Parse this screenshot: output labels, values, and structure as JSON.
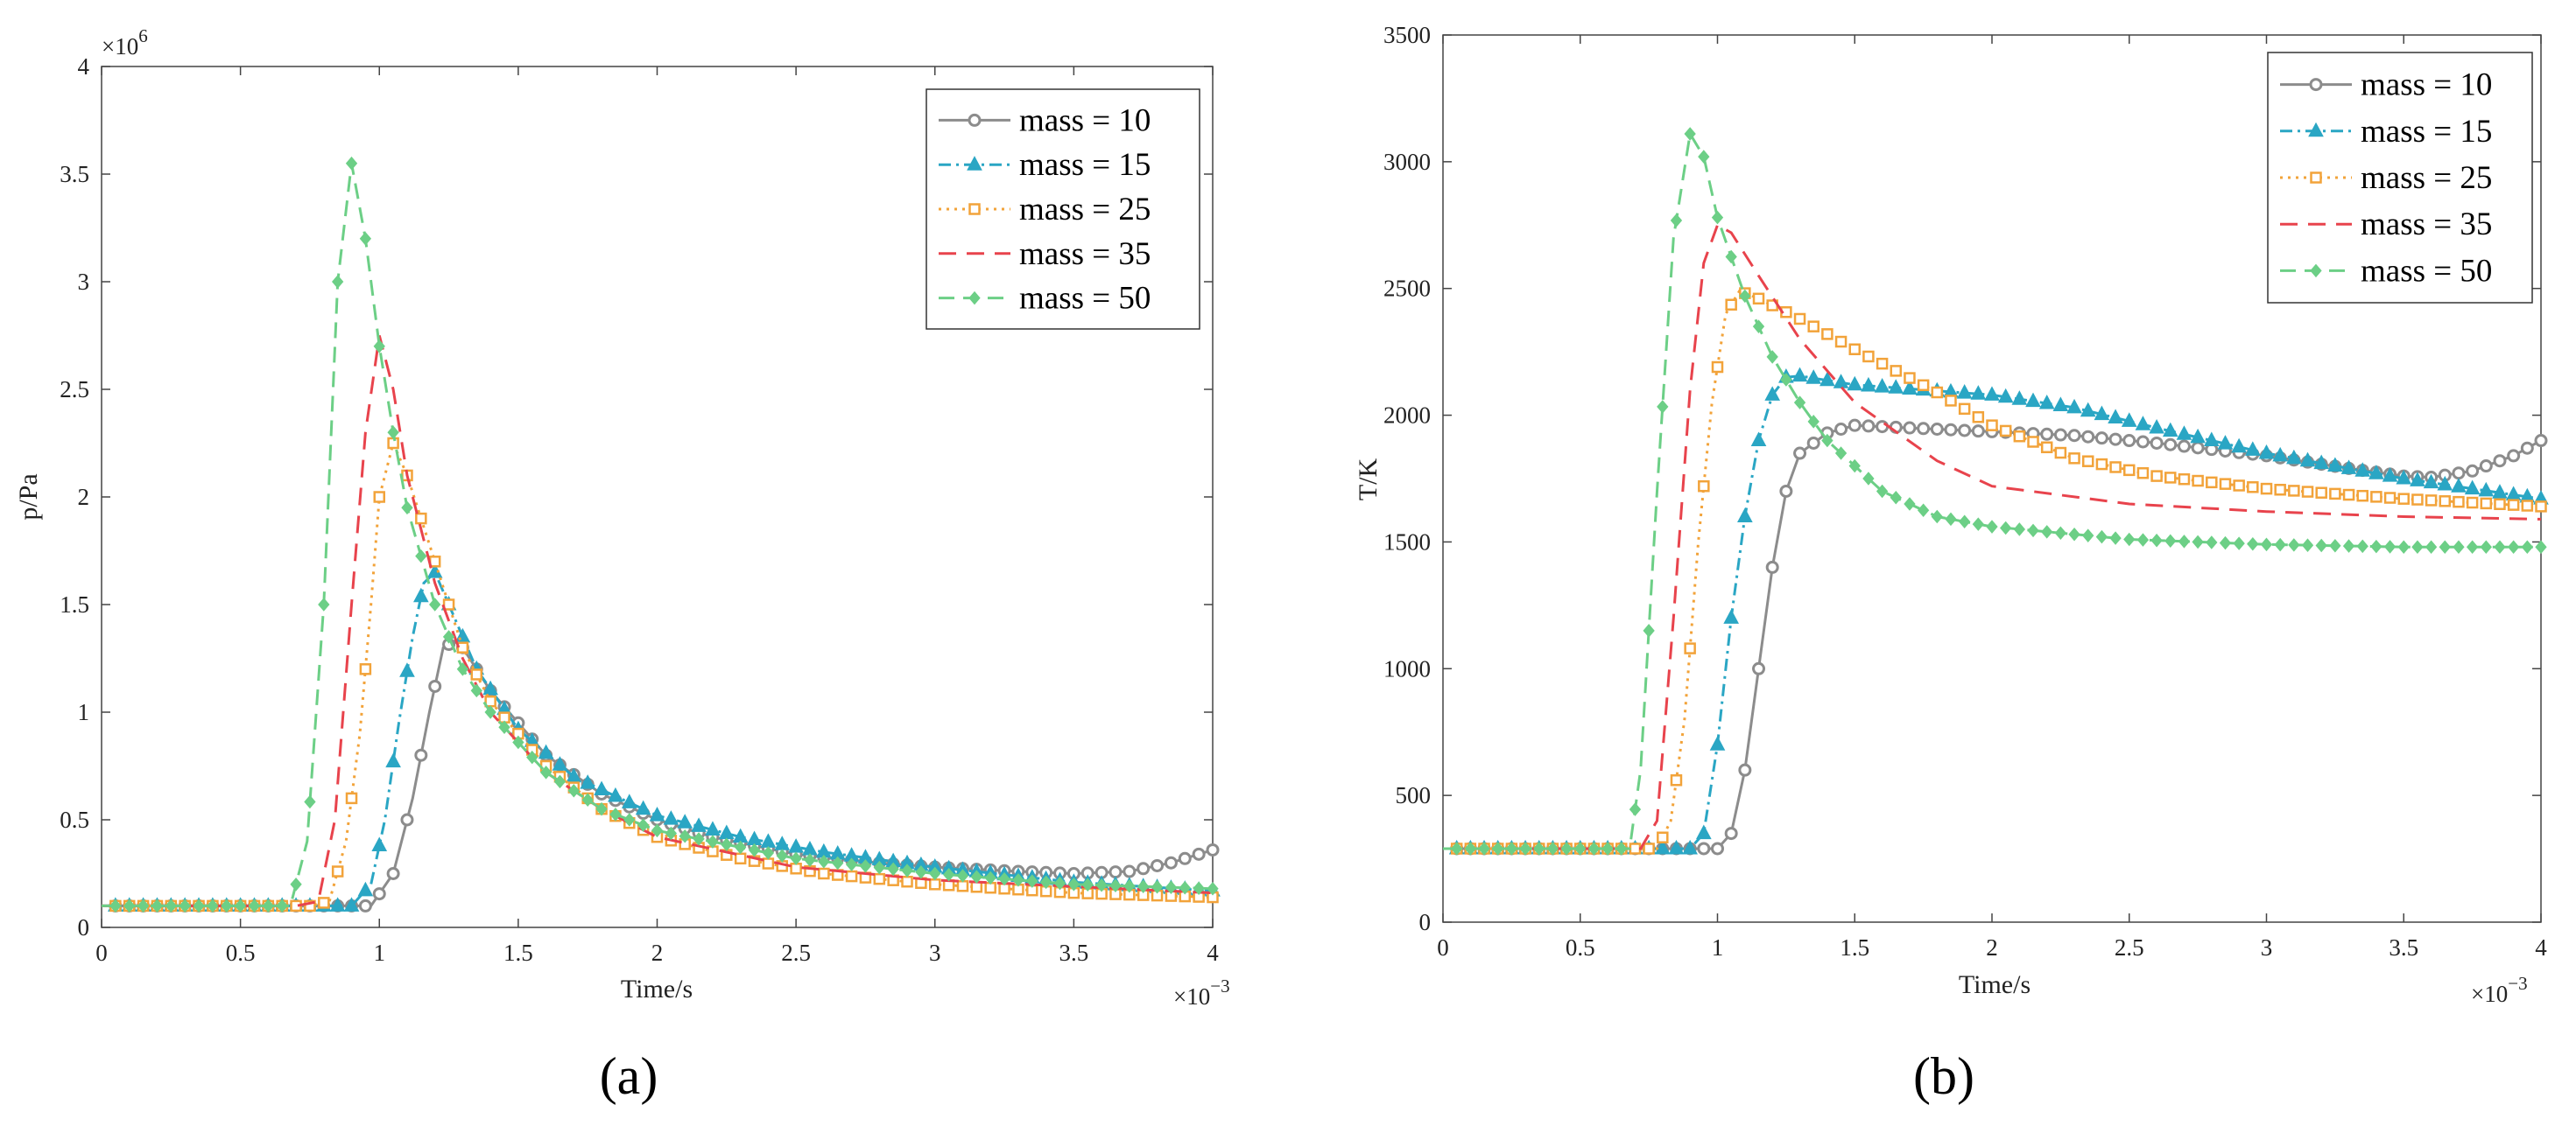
{
  "chart_data": [
    {
      "type": "line",
      "panel_label": "(a)",
      "xlabel": "Time/s",
      "ylabel": "p/Pa",
      "x_multiplier_label": "×10",
      "x_multiplier_exp": "−3",
      "y_multiplier_label": "×10",
      "y_multiplier_exp": "6",
      "xlim": [
        0,
        4
      ],
      "ylim": [
        0,
        4
      ],
      "xticks": [
        "0",
        "0.5",
        "1",
        "1.5",
        "2",
        "2.5",
        "3",
        "3.5",
        "4"
      ],
      "yticks": [
        "0",
        "0.5",
        "1",
        "1.5",
        "2",
        "2.5",
        "3",
        "3.5",
        "4"
      ],
      "legend_position": "top-right",
      "series": [
        {
          "name": "mass = 10",
          "color": "#8c8c8c",
          "dash": "",
          "marker": "circle",
          "points": [
            [
              0,
              0.1
            ],
            [
              0.9,
              0.1
            ],
            [
              0.97,
              0.1
            ],
            [
              1.05,
              0.25
            ],
            [
              1.12,
              0.6
            ],
            [
              1.18,
              1.0
            ],
            [
              1.23,
              1.3
            ],
            [
              1.27,
              1.33
            ],
            [
              1.3,
              1.3
            ],
            [
              1.4,
              1.1
            ],
            [
              1.5,
              0.95
            ],
            [
              1.6,
              0.8
            ],
            [
              1.8,
              0.62
            ],
            [
              2.0,
              0.5
            ],
            [
              2.2,
              0.42
            ],
            [
              2.5,
              0.34
            ],
            [
              2.8,
              0.3
            ],
            [
              3.0,
              0.28
            ],
            [
              3.3,
              0.26
            ],
            [
              3.5,
              0.25
            ],
            [
              3.7,
              0.26
            ],
            [
              3.85,
              0.3
            ],
            [
              4.0,
              0.36
            ]
          ]
        },
        {
          "name": "mass = 15",
          "color": "#2aa6c4",
          "dash": "14,6,3,6",
          "marker": "triangle",
          "points": [
            [
              0,
              0.1
            ],
            [
              0.8,
              0.1
            ],
            [
              0.9,
              0.1
            ],
            [
              0.97,
              0.2
            ],
            [
              1.02,
              0.5
            ],
            [
              1.07,
              0.95
            ],
            [
              1.12,
              1.35
            ],
            [
              1.16,
              1.6
            ],
            [
              1.2,
              1.65
            ],
            [
              1.25,
              1.5
            ],
            [
              1.35,
              1.2
            ],
            [
              1.5,
              0.92
            ],
            [
              1.7,
              0.7
            ],
            [
              2.0,
              0.52
            ],
            [
              2.3,
              0.42
            ],
            [
              2.6,
              0.35
            ],
            [
              3.0,
              0.28
            ],
            [
              3.5,
              0.21
            ],
            [
              4.0,
              0.17
            ]
          ]
        },
        {
          "name": "mass = 25",
          "color": "#f2a33a",
          "dash": "3,6",
          "marker": "square",
          "points": [
            [
              0,
              0.1
            ],
            [
              0.75,
              0.1
            ],
            [
              0.82,
              0.12
            ],
            [
              0.88,
              0.4
            ],
            [
              0.93,
              0.9
            ],
            [
              0.97,
              1.5
            ],
            [
              1.0,
              2.0
            ],
            [
              1.05,
              2.25
            ],
            [
              1.1,
              2.1
            ],
            [
              1.2,
              1.7
            ],
            [
              1.3,
              1.3
            ],
            [
              1.4,
              1.05
            ],
            [
              1.6,
              0.75
            ],
            [
              1.8,
              0.55
            ],
            [
              2.0,
              0.42
            ],
            [
              2.3,
              0.32
            ],
            [
              2.6,
              0.25
            ],
            [
              3.0,
              0.2
            ],
            [
              3.5,
              0.16
            ],
            [
              4.0,
              0.14
            ]
          ]
        },
        {
          "name": "mass = 35",
          "color": "#e8434c",
          "dash": "20,12",
          "marker": "none",
          "points": [
            [
              0,
              0.1
            ],
            [
              0.7,
              0.1
            ],
            [
              0.78,
              0.12
            ],
            [
              0.84,
              0.5
            ],
            [
              0.9,
              1.5
            ],
            [
              0.95,
              2.3
            ],
            [
              1.0,
              2.75
            ],
            [
              1.05,
              2.5
            ],
            [
              1.1,
              2.1
            ],
            [
              1.2,
              1.6
            ],
            [
              1.3,
              1.25
            ],
            [
              1.4,
              1.0
            ],
            [
              1.6,
              0.72
            ],
            [
              1.8,
              0.55
            ],
            [
              2.0,
              0.42
            ],
            [
              2.5,
              0.28
            ],
            [
              3.0,
              0.22
            ],
            [
              3.5,
              0.19
            ],
            [
              4.0,
              0.16
            ]
          ]
        },
        {
          "name": "mass = 50",
          "color": "#6ccf86",
          "dash": "18,10",
          "marker": "diamond",
          "points": [
            [
              0,
              0.1
            ],
            [
              0.68,
              0.1
            ],
            [
              0.74,
              0.4
            ],
            [
              0.8,
              1.5
            ],
            [
              0.85,
              3.0
            ],
            [
              0.9,
              3.55
            ],
            [
              0.95,
              3.2
            ],
            [
              1.0,
              2.7
            ],
            [
              1.05,
              2.3
            ],
            [
              1.1,
              1.95
            ],
            [
              1.2,
              1.5
            ],
            [
              1.3,
              1.2
            ],
            [
              1.4,
              1.0
            ],
            [
              1.6,
              0.72
            ],
            [
              1.8,
              0.55
            ],
            [
              2.0,
              0.45
            ],
            [
              2.5,
              0.32
            ],
            [
              3.0,
              0.25
            ],
            [
              3.5,
              0.2
            ],
            [
              4.0,
              0.18
            ]
          ]
        }
      ]
    },
    {
      "type": "line",
      "panel_label": "(b)",
      "xlabel": "Time/s",
      "ylabel": "T/K",
      "x_multiplier_label": "×10",
      "x_multiplier_exp": "−3",
      "xlim": [
        0,
        4
      ],
      "ylim": [
        0,
        3500
      ],
      "xticks": [
        "0",
        "0.5",
        "1",
        "1.5",
        "2",
        "2.5",
        "3",
        "3.5",
        "4"
      ],
      "yticks": [
        "0",
        "500",
        "1000",
        "1500",
        "2000",
        "2500",
        "3000",
        "3500"
      ],
      "legend_position": "top-right",
      "series": [
        {
          "name": "mass = 10",
          "color": "#8c8c8c",
          "dash": "",
          "marker": "circle",
          "points": [
            [
              0,
              290
            ],
            [
              1.0,
              290
            ],
            [
              1.05,
              350
            ],
            [
              1.1,
              600
            ],
            [
              1.15,
              1000
            ],
            [
              1.2,
              1400
            ],
            [
              1.25,
              1700
            ],
            [
              1.3,
              1850
            ],
            [
              1.4,
              1930
            ],
            [
              1.5,
              1960
            ],
            [
              1.7,
              1950
            ],
            [
              2.0,
              1935
            ],
            [
              2.3,
              1920
            ],
            [
              2.6,
              1890
            ],
            [
              3.0,
              1840
            ],
            [
              3.3,
              1790
            ],
            [
              3.5,
              1760
            ],
            [
              3.6,
              1755
            ],
            [
              3.75,
              1780
            ],
            [
              3.9,
              1840
            ],
            [
              4.0,
              1900
            ]
          ]
        },
        {
          "name": "mass = 15",
          "color": "#2aa6c4",
          "dash": "14,6,3,6",
          "marker": "triangle",
          "points": [
            [
              0,
              290
            ],
            [
              0.9,
              290
            ],
            [
              0.95,
              350
            ],
            [
              1.0,
              700
            ],
            [
              1.05,
              1200
            ],
            [
              1.1,
              1600
            ],
            [
              1.15,
              1900
            ],
            [
              1.2,
              2080
            ],
            [
              1.25,
              2150
            ],
            [
              1.3,
              2155
            ],
            [
              1.5,
              2120
            ],
            [
              2.0,
              2080
            ],
            [
              2.3,
              2030
            ],
            [
              2.6,
              1950
            ],
            [
              3.0,
              1850
            ],
            [
              3.5,
              1750
            ],
            [
              4.0,
              1670
            ]
          ]
        },
        {
          "name": "mass = 25",
          "color": "#f2a33a",
          "dash": "3,6",
          "marker": "square",
          "points": [
            [
              0,
              290
            ],
            [
              0.78,
              290
            ],
            [
              0.83,
              400
            ],
            [
              0.88,
              800
            ],
            [
              0.93,
              1500
            ],
            [
              0.98,
              2050
            ],
            [
              1.03,
              2400
            ],
            [
              1.08,
              2490
            ],
            [
              1.15,
              2460
            ],
            [
              1.3,
              2380
            ],
            [
              1.5,
              2260
            ],
            [
              1.8,
              2090
            ],
            [
              2.0,
              1960
            ],
            [
              2.3,
              1830
            ],
            [
              2.6,
              1760
            ],
            [
              3.0,
              1710
            ],
            [
              3.5,
              1670
            ],
            [
              4.0,
              1640
            ]
          ]
        },
        {
          "name": "mass = 35",
          "color": "#e8434c",
          "dash": "20,12",
          "marker": "none",
          "points": [
            [
              0,
              290
            ],
            [
              0.72,
              290
            ],
            [
              0.78,
              400
            ],
            [
              0.84,
              1200
            ],
            [
              0.9,
              2100
            ],
            [
              0.95,
              2600
            ],
            [
              1.0,
              2750
            ],
            [
              1.05,
              2720
            ],
            [
              1.15,
              2550
            ],
            [
              1.3,
              2300
            ],
            [
              1.5,
              2050
            ],
            [
              1.8,
              1820
            ],
            [
              2.0,
              1720
            ],
            [
              2.5,
              1650
            ],
            [
              3.0,
              1620
            ],
            [
              3.5,
              1600
            ],
            [
              4.0,
              1590
            ]
          ]
        },
        {
          "name": "mass = 50",
          "color": "#6ccf86",
          "dash": "18,10",
          "marker": "diamond",
          "points": [
            [
              0,
              290
            ],
            [
              0.68,
              290
            ],
            [
              0.72,
              600
            ],
            [
              0.78,
              1700
            ],
            [
              0.84,
              2700
            ],
            [
              0.9,
              3110
            ],
            [
              0.95,
              3020
            ],
            [
              1.0,
              2780
            ],
            [
              1.1,
              2470
            ],
            [
              1.2,
              2230
            ],
            [
              1.3,
              2050
            ],
            [
              1.4,
              1900
            ],
            [
              1.6,
              1700
            ],
            [
              1.8,
              1600
            ],
            [
              2.0,
              1560
            ],
            [
              2.5,
              1510
            ],
            [
              3.0,
              1490
            ],
            [
              3.5,
              1480
            ],
            [
              4.0,
              1480
            ]
          ]
        }
      ]
    }
  ]
}
